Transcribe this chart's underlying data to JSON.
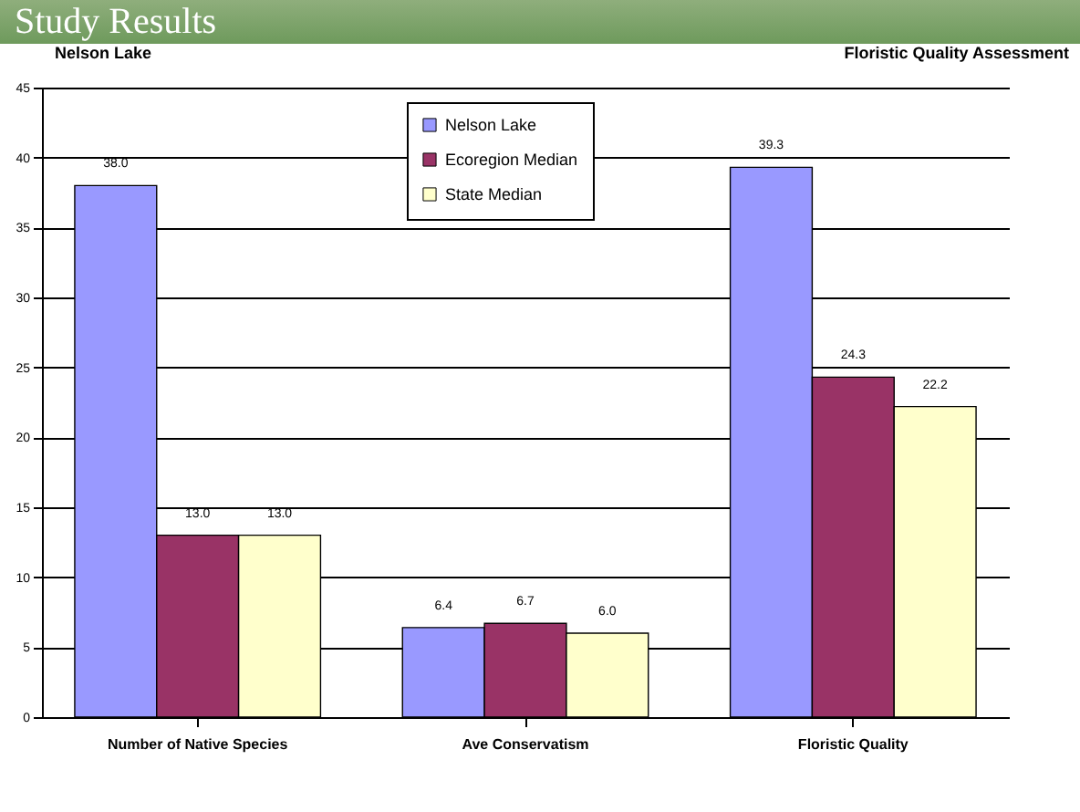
{
  "chart_data": {
    "type": "bar",
    "title": "Study Results",
    "subtitle": "Nelson Lake",
    "annotations": [
      "Floristic Quality Assessment"
    ],
    "categories": [
      "Number of Native Species",
      "Ave Conservatism",
      "Floristic Quality"
    ],
    "series": [
      {
        "name": "Nelson Lake",
        "color": "#9999ff",
        "values": [
          38.0,
          6.4,
          39.3
        ],
        "value_labels": [
          "38.0",
          "6.4",
          "39.3"
        ]
      },
      {
        "name": "Ecoregion Median",
        "color": "#993366",
        "values": [
          13.0,
          6.7,
          24.3
        ],
        "value_labels": [
          "13.0",
          "6.7",
          "24.3"
        ]
      },
      {
        "name": "State Median",
        "color": "#ffffcc",
        "values": [
          13.0,
          6.0,
          22.2
        ],
        "value_labels": [
          "13.0",
          "6.0",
          "22.2"
        ]
      }
    ],
    "ylim": [
      0,
      45
    ],
    "yticks": [
      0,
      5,
      10,
      15,
      20,
      25,
      30,
      35,
      40,
      45
    ],
    "grid": "y",
    "legend": "top"
  }
}
